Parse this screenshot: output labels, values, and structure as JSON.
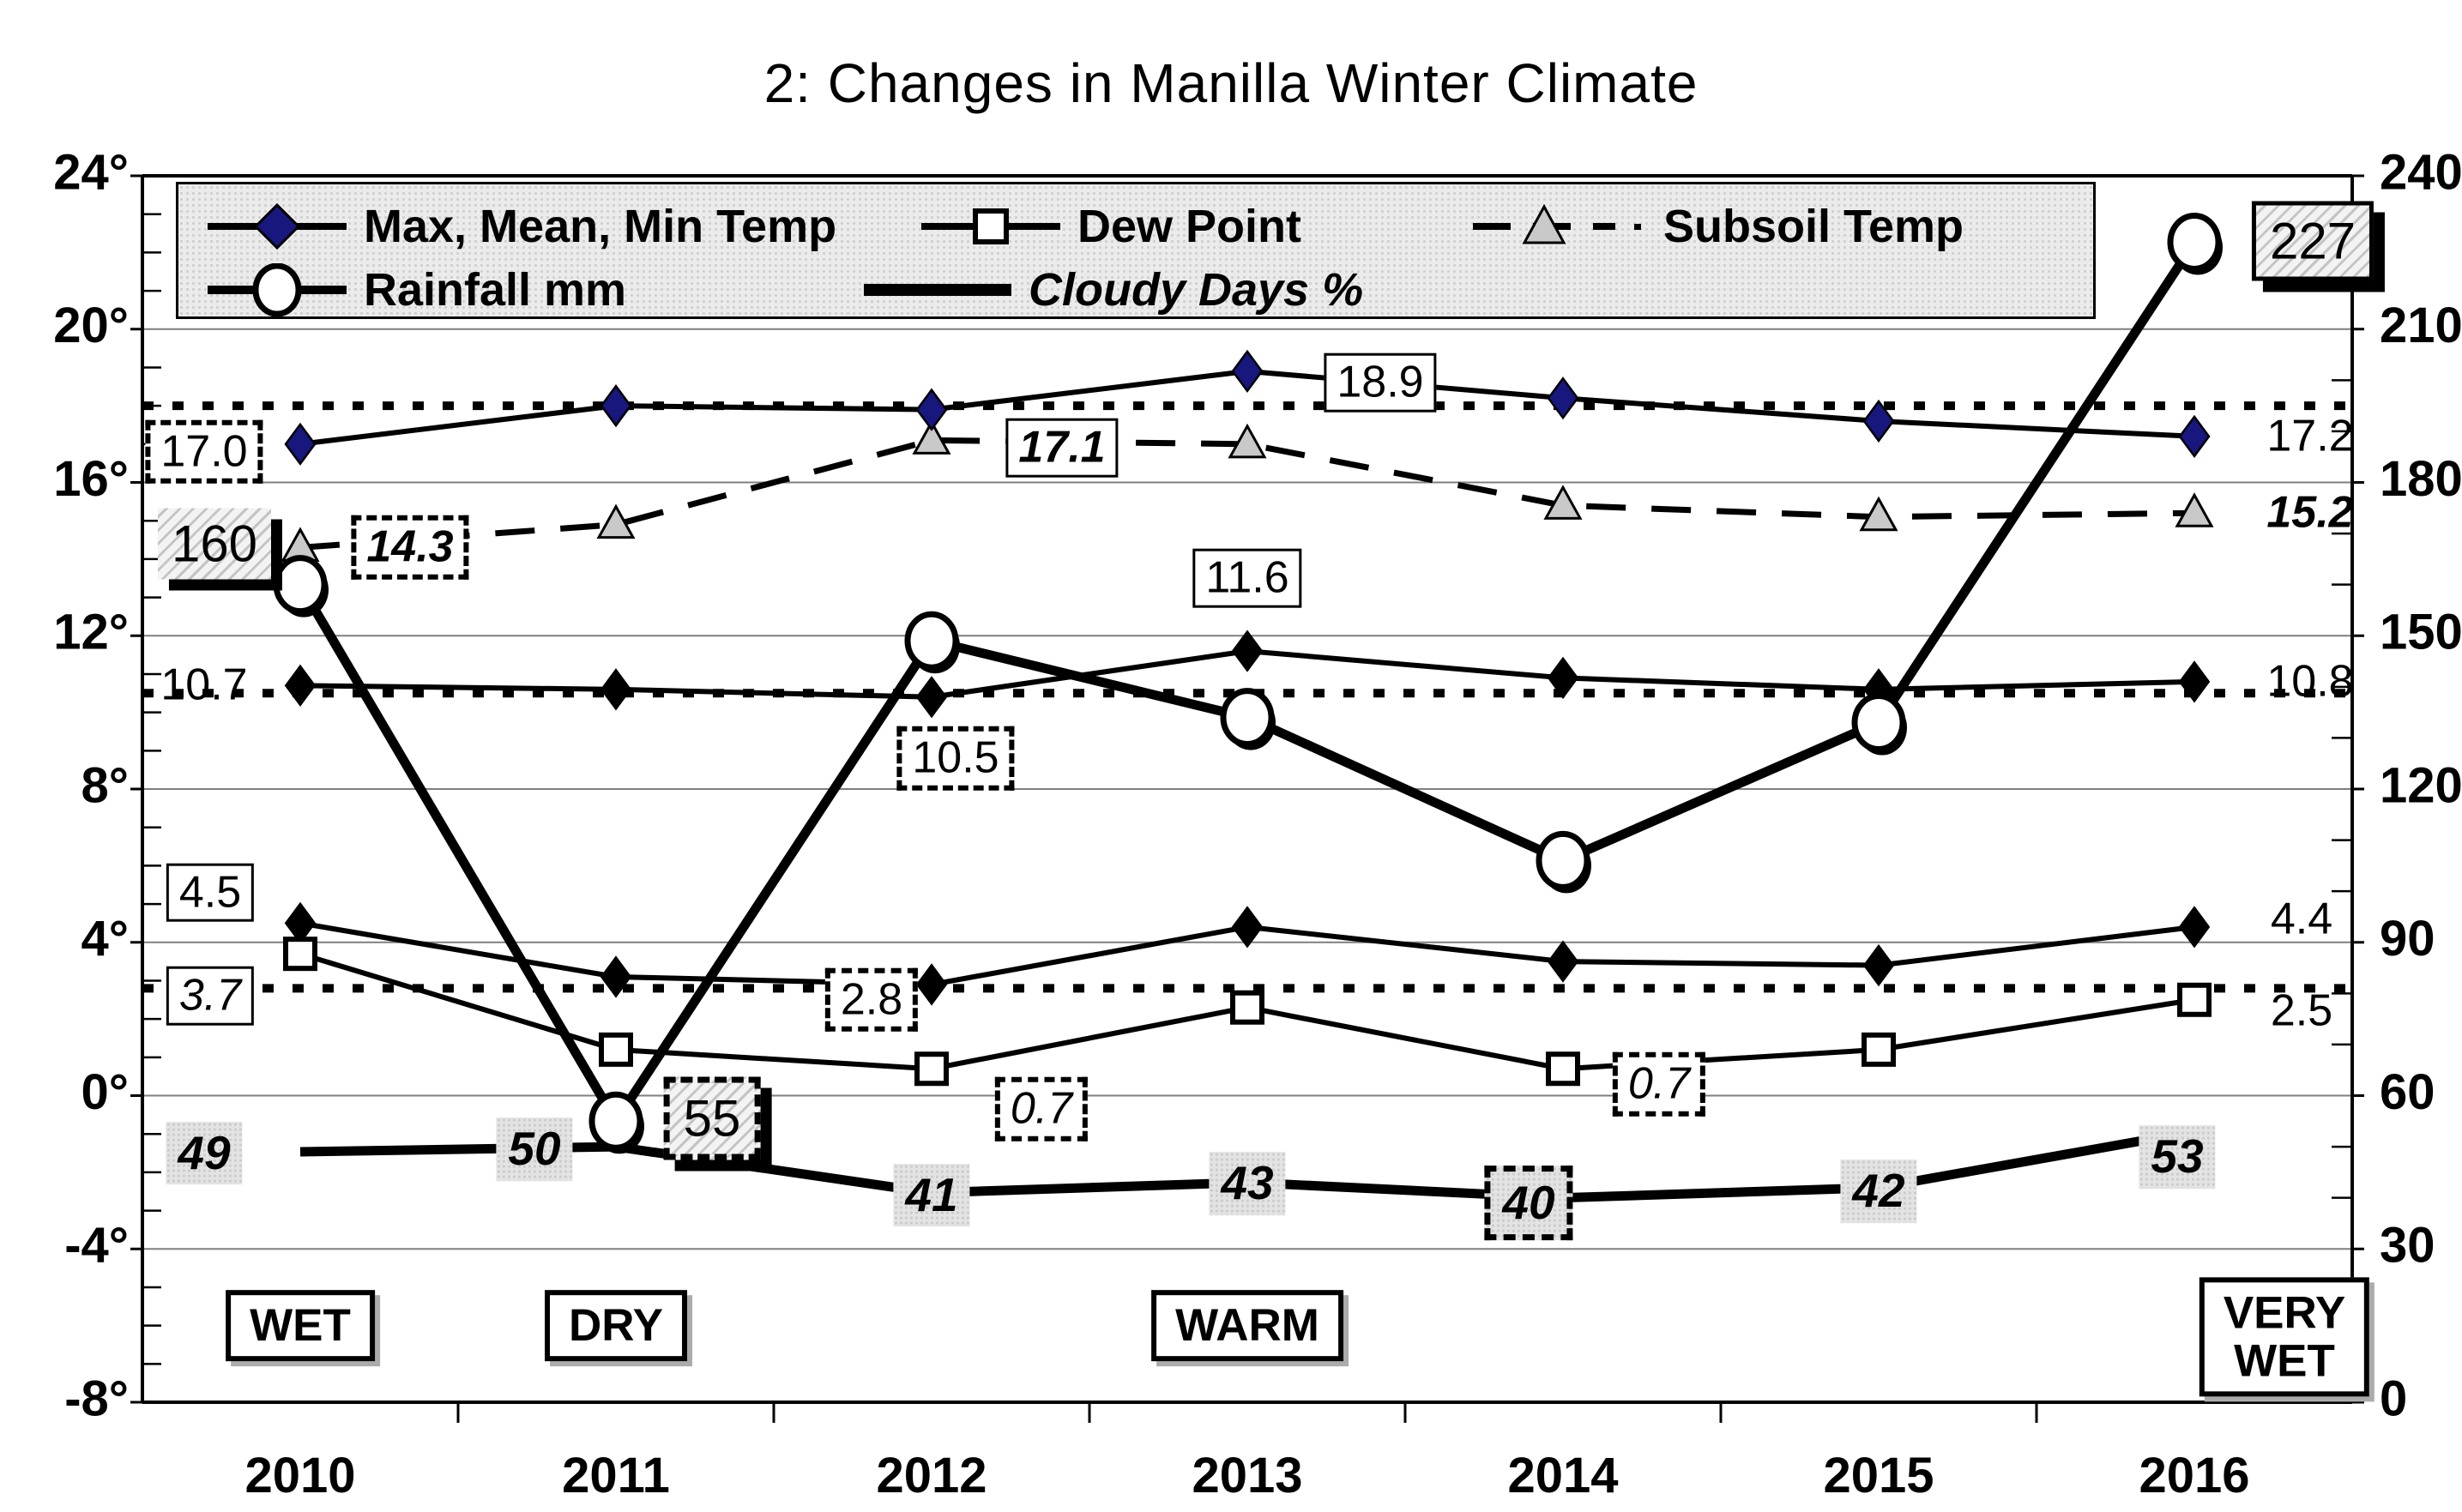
{
  "title": "2: Changes in Manilla Winter Climate",
  "legend": {
    "items": [
      {
        "label": "Max, Mean, Min Temp",
        "marker": "diamond"
      },
      {
        "label": "Dew Point",
        "marker": "square"
      },
      {
        "label": "Subsoil Temp",
        "marker": "triangle"
      },
      {
        "label": "Rainfall mm",
        "marker": "circle"
      },
      {
        "label": "Cloudy Days %",
        "marker": "thick-line"
      }
    ]
  },
  "axes": {
    "left_ticks": [
      "24°",
      "20°",
      "16°",
      "12°",
      "8°",
      "4°",
      "0°",
      "-4°",
      "-8°"
    ],
    "left_values": [
      24,
      20,
      16,
      12,
      8,
      4,
      0,
      -4,
      -8
    ],
    "right_ticks": [
      "240",
      "210",
      "180",
      "150",
      "120",
      "90",
      "60",
      "30",
      "0"
    ],
    "right_values": [
      240,
      210,
      180,
      150,
      120,
      90,
      60,
      30,
      0
    ],
    "x_ticks": [
      "2010",
      "2011",
      "2012",
      "2013",
      "2014",
      "2015",
      "2016"
    ]
  },
  "colors": {
    "navy": "#17177e",
    "triangle_gray": "#c9c9c9",
    "grid": "#7f7f7f",
    "black": "#000000",
    "legend_bg": "#ebebeb",
    "label_gray_bg": "#e3e3e3"
  },
  "chart_data": {
    "type": "line",
    "title": "2: Changes in Manilla Winter Climate",
    "x": [
      2010,
      2011,
      2012,
      2013,
      2014,
      2015,
      2016
    ],
    "left_axis_range": [
      -8,
      24
    ],
    "right_axis_range": [
      0,
      240
    ],
    "grid": true,
    "legend_position": "top",
    "series": [
      {
        "name": "Subsoil Temp",
        "axis": "left",
        "style": "dashed",
        "marker": "triangle",
        "values": [
          14.3,
          14.9,
          17.1,
          17.0,
          15.4,
          15.1,
          15.2
        ]
      },
      {
        "name": "Max Temp",
        "axis": "left",
        "style": "solid",
        "marker": "diamond-navy",
        "values": [
          17.0,
          18.0,
          17.9,
          18.9,
          18.2,
          17.6,
          17.2
        ]
      },
      {
        "name": "Mean Temp",
        "axis": "left",
        "style": "solid",
        "marker": "diamond-black",
        "values": [
          10.7,
          10.6,
          10.4,
          11.6,
          10.9,
          10.6,
          10.8
        ]
      },
      {
        "name": "Min Temp",
        "axis": "left",
        "style": "solid",
        "marker": "diamond-black",
        "values": [
          4.5,
          3.1,
          2.9,
          4.4,
          3.5,
          3.4,
          4.4
        ]
      },
      {
        "name": "Dew Point",
        "axis": "left",
        "style": "solid",
        "marker": "square",
        "values": [
          3.7,
          1.2,
          0.7,
          2.3,
          0.7,
          1.2,
          2.5
        ]
      },
      {
        "name": "Rainfall mm",
        "axis": "right",
        "style": "thick",
        "marker": "circle",
        "values": [
          160,
          55,
          149,
          134,
          106,
          133,
          227
        ]
      },
      {
        "name": "Cloudy Days %",
        "axis": "right",
        "style": "thick",
        "marker": "none",
        "values": [
          49,
          50,
          41,
          43,
          40,
          42,
          53
        ]
      }
    ],
    "reference_lines": [
      {
        "value": 18.0,
        "axis": "left",
        "style": "dotted"
      },
      {
        "value": 10.5,
        "axis": "left",
        "style": "dotted"
      },
      {
        "value": 2.8,
        "axis": "left",
        "style": "dotted"
      }
    ],
    "annotations": [
      {
        "text": "17.0",
        "xi": 0,
        "y": 16.8,
        "dx": -112,
        "cls": "dash"
      },
      {
        "text": "160",
        "xi": 0,
        "y": 14.4,
        "dx": -100,
        "cls": "hatch shadow big"
      },
      {
        "text": "14.3",
        "xi": 0,
        "y": 14.3,
        "dx": 128,
        "cls": "dash bi"
      },
      {
        "text": "10.7",
        "xi": 0,
        "y": 10.7,
        "dx": -112,
        "cls": "plain"
      },
      {
        "text": "4.5",
        "xi": 0,
        "y": 5.3,
        "dx": -105,
        "cls": "box"
      },
      {
        "text": "3.7",
        "xi": 0,
        "y": 2.6,
        "dx": -105,
        "cls": "box it"
      },
      {
        "text": "49",
        "xi": 0,
        "y": -1.5,
        "dx": -112,
        "cls": "gray"
      },
      {
        "text": "WET",
        "xi": 0,
        "y": -6.0,
        "dx": 0,
        "cls": "cond"
      },
      {
        "text": "50",
        "xi": 1,
        "y": -1.4,
        "dx": -95,
        "cls": "gray"
      },
      {
        "text": "55",
        "xi": 1,
        "y": -0.6,
        "dx": 112,
        "cls": "hatch dashb shadow big"
      },
      {
        "text": "DRY",
        "xi": 1,
        "y": -6.0,
        "dx": 0,
        "cls": "cond"
      },
      {
        "text": "2.8",
        "xi": 2,
        "y": 2.5,
        "dx": -70,
        "cls": "dash"
      },
      {
        "text": "17.1",
        "xi": 2,
        "y": 16.9,
        "dx": 152,
        "cls": "box bi"
      },
      {
        "text": "10.5",
        "xi": 2,
        "y": 8.8,
        "dx": 28,
        "cls": "dash"
      },
      {
        "text": "0.7",
        "xi": 2,
        "y": -0.35,
        "dx": 128,
        "cls": "dash it"
      },
      {
        "text": "41",
        "xi": 2,
        "y": -2.6,
        "dx": 0,
        "cls": "gray"
      },
      {
        "text": "18.9",
        "xi": 3,
        "y": 18.6,
        "dx": 155,
        "cls": "box"
      },
      {
        "text": "11.6",
        "xi": 3,
        "y": 13.5,
        "dx": 0,
        "cls": "box"
      },
      {
        "text": "43",
        "xi": 3,
        "y": -2.3,
        "dx": 0,
        "cls": "gray"
      },
      {
        "text": "WARM",
        "xi": 3,
        "y": -6.0,
        "dx": 0,
        "cls": "cond"
      },
      {
        "text": "0.7",
        "xi": 4,
        "y": 0.3,
        "dx": 112,
        "cls": "dash it"
      },
      {
        "text": "40",
        "xi": 4,
        "y": -2.8,
        "dx": -40,
        "cls": "gray dashb"
      },
      {
        "text": "42",
        "xi": 5,
        "y": -2.5,
        "dx": 0,
        "cls": "gray"
      },
      {
        "text": "227",
        "xi": 6,
        "y": 22.3,
        "dx": 138,
        "cls": "hatch solidb shadow big"
      },
      {
        "text": "17.2",
        "xi": 6,
        "y": 17.2,
        "dx": 135,
        "cls": "plain"
      },
      {
        "text": "15.2",
        "xi": 6,
        "y": 15.2,
        "dx": 135,
        "cls": "plain bi"
      },
      {
        "text": "10.8",
        "xi": 6,
        "y": 10.8,
        "dx": 135,
        "cls": "plain"
      },
      {
        "text": "4.4",
        "xi": 6,
        "y": 4.6,
        "dx": 125,
        "cls": "plain"
      },
      {
        "text": "2.5",
        "xi": 6,
        "y": 2.2,
        "dx": 125,
        "cls": "plain"
      },
      {
        "text": "53",
        "xi": 6,
        "y": -1.6,
        "dx": -20,
        "cls": "gray"
      },
      {
        "text": "VERY\nWET",
        "xi": 6,
        "y": -6.3,
        "dx": 105,
        "cls": "cond"
      }
    ]
  }
}
